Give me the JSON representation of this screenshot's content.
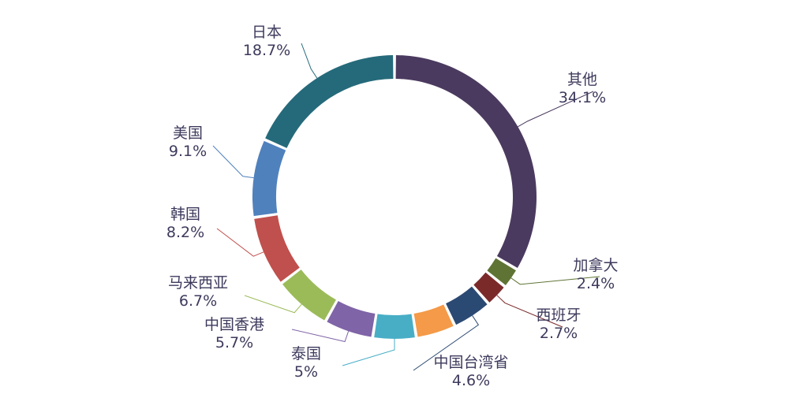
{
  "chart_data": {
    "type": "pie",
    "variant": "donut",
    "start_angle_deg": 0,
    "direction": "clockwise",
    "slices": [
      {
        "label": "其他",
        "value": 34.1,
        "value_label": "34.1%",
        "color": "#4b3a5f"
      },
      {
        "label": "加拿大",
        "value": 2.4,
        "value_label": "2.4%",
        "color": "#5f7434"
      },
      {
        "label": "西班牙",
        "value": 2.7,
        "value_label": "2.7%",
        "color": "#7b2a2a"
      },
      {
        "label": "中国台湾省",
        "value": 4.6,
        "value_label": "4.6%",
        "color": "#2b4a73"
      },
      {
        "label": "",
        "value": 4.6,
        "value_label": "",
        "color": "#f49a48"
      },
      {
        "label": "泰国",
        "value": 5.0,
        "value_label": "5%",
        "color": "#47aec6"
      },
      {
        "label": "中国香港",
        "value": 5.7,
        "value_label": "5.7%",
        "color": "#7f64a7"
      },
      {
        "label": "马来西亚",
        "value": 6.7,
        "value_label": "6.7%",
        "color": "#9bbb59"
      },
      {
        "label": "韩国",
        "value": 8.2,
        "value_label": "8.2%",
        "color": "#c0504d"
      },
      {
        "label": "美国",
        "value": 9.1,
        "value_label": "9.1%",
        "color": "#4f81bd"
      },
      {
        "label": "日本",
        "value": 18.7,
        "value_label": "18.7%",
        "color": "#256a7a"
      }
    ]
  }
}
